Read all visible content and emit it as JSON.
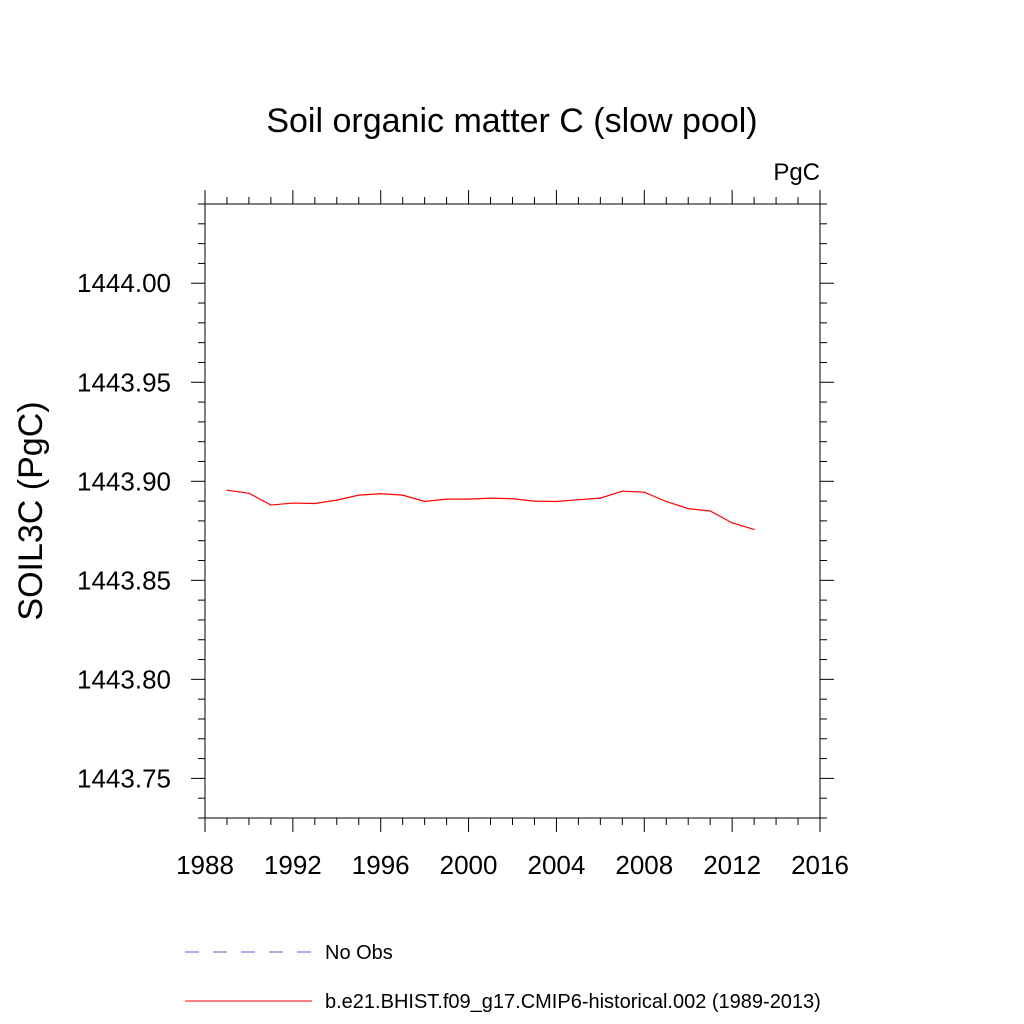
{
  "chart_data": {
    "type": "line",
    "title": "Soil organic matter C (slow pool)",
    "units": "PgC",
    "xlabel": "",
    "ylabel": "SOIL3C  (PgC)",
    "xlim": [
      1988,
      2016
    ],
    "ylim": [
      1443.73,
      1444.04
    ],
    "x_ticks": [
      "1988",
      "1992",
      "1996",
      "2000",
      "2004",
      "2008",
      "2012",
      "2016"
    ],
    "y_ticks": [
      "1443.75",
      "1443.80",
      "1443.85",
      "1443.90",
      "1443.95",
      "1444.00"
    ],
    "grid": false,
    "legend_position": "bottom",
    "colors": {
      "model": "#ff0000",
      "obs": "#6a5acd"
    },
    "series": [
      {
        "name": "b.e21.BHIST.f09_g17.CMIP6-historical.002 (1989-2013)",
        "x": [
          1989,
          1990,
          1991,
          1992,
          1993,
          1994,
          1995,
          1996,
          1997,
          1998,
          1999,
          2000,
          2001,
          2002,
          2003,
          2004,
          2005,
          2006,
          2007,
          2008,
          2009,
          2010,
          2011,
          2012,
          2013
        ],
        "y": [
          1443.8955,
          1443.894,
          1443.888,
          1443.889,
          1443.8888,
          1443.8905,
          1443.893,
          1443.8937,
          1443.893,
          1443.8898,
          1443.891,
          1443.891,
          1443.8915,
          1443.8912,
          1443.89,
          1443.8898,
          1443.8907,
          1443.8915,
          1443.895,
          1443.8945,
          1443.8898,
          1443.8862,
          1443.885,
          1443.879,
          1443.8757
        ]
      },
      {
        "name": "No Obs",
        "x": [],
        "y": []
      }
    ]
  }
}
